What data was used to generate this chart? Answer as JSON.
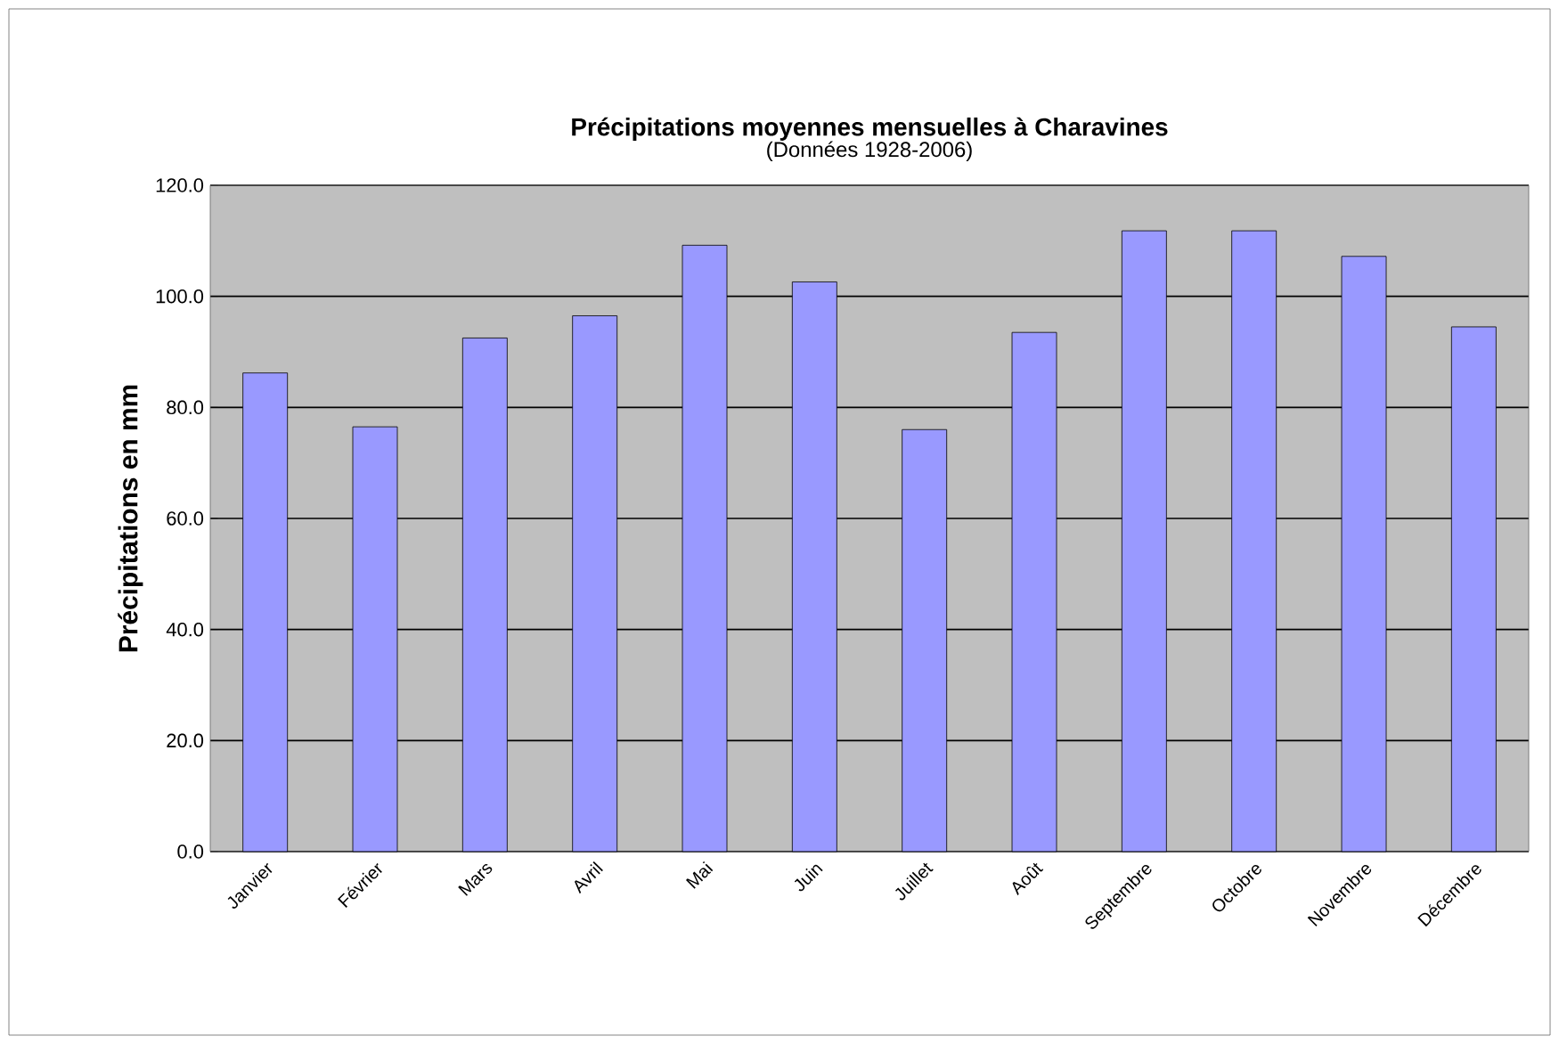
{
  "chart_data": {
    "type": "bar",
    "title": "Précipitations moyennes mensuelles à Charavines",
    "subtitle": "(Données 1928-2006)",
    "ylabel": "Précipitations en mm",
    "categories": [
      "Janvier",
      "Février",
      "Mars",
      "Avril",
      "Mai",
      "Juin",
      "Juillet",
      "Août",
      "Septembre",
      "Octobre",
      "Novembre",
      "Décembre"
    ],
    "values": [
      86.2,
      76.5,
      92.5,
      96.5,
      109.2,
      102.6,
      76.0,
      93.5,
      111.8,
      111.8,
      107.2,
      94.5
    ],
    "color": "#9999ff",
    "ylim": [
      0,
      120
    ],
    "yticks": [
      {
        "value": 0,
        "label": "0.0"
      },
      {
        "value": 20,
        "label": "20.0"
      },
      {
        "value": 40,
        "label": "40.0"
      },
      {
        "value": 60,
        "label": "60.0"
      },
      {
        "value": 80,
        "label": "80.0"
      },
      {
        "value": 100,
        "label": "100.0"
      },
      {
        "value": 120,
        "label": "120.0"
      }
    ],
    "grid": "y"
  }
}
